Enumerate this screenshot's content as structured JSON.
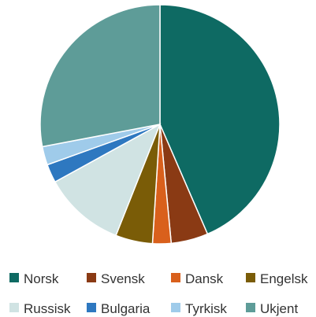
{
  "chart_data": {
    "type": "pie",
    "title": "",
    "legend_position": "bottom",
    "slices": [
      {
        "label": "Norsk",
        "value": 43.5,
        "color": "#0E6A63"
      },
      {
        "label": "Svensk",
        "value": 5.0,
        "color": "#8A3A14"
      },
      {
        "label": "Dansk",
        "value": 2.5,
        "color": "#D9601C"
      },
      {
        "label": "Engelsk",
        "value": 5.0,
        "color": "#7A5C07"
      },
      {
        "label": "Russisk",
        "value": 11.0,
        "color": "#D0E3E3"
      },
      {
        "label": "Bulgaria",
        "value": 2.5,
        "color": "#2E78C0"
      },
      {
        "label": "Tyrkisk",
        "value": 2.5,
        "color": "#9FCBEA"
      },
      {
        "label": "Ukjent",
        "value": 28.0,
        "color": "#5E9C98"
      }
    ]
  }
}
